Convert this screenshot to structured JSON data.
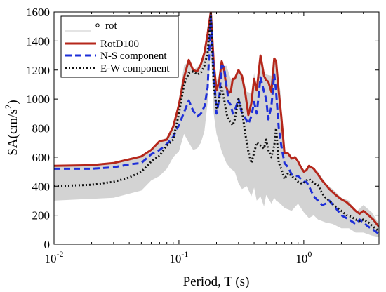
{
  "chart_data": {
    "type": "line",
    "xlabel": "Period, T (s)",
    "ylabel_main": "SA(cm/s",
    "ylabel_sup": "2",
    "ylabel_end": ")",
    "xscale": "log",
    "xlim": [
      0.01,
      4
    ],
    "ylim": [
      0,
      1600
    ],
    "x_ticks": [
      {
        "value": 0.01,
        "base": "10",
        "exp": "-2"
      },
      {
        "value": 0.1,
        "base": "10",
        "exp": "-1"
      },
      {
        "value": 1,
        "base": "10",
        "exp": "0"
      }
    ],
    "y_ticks": [
      0,
      200,
      400,
      600,
      800,
      1000,
      1200,
      1400,
      1600
    ],
    "grid": false,
    "legend_position": "top-left",
    "band": {
      "name": "rot",
      "color": "#d3d3d3",
      "x": [
        0.01,
        0.03,
        0.05,
        0.06,
        0.07,
        0.08,
        0.09,
        0.1,
        0.11,
        0.12,
        0.13,
        0.14,
        0.15,
        0.16,
        0.17,
        0.18,
        0.19,
        0.2,
        0.22,
        0.24,
        0.26,
        0.28,
        0.3,
        0.32,
        0.35,
        0.38,
        0.4,
        0.42,
        0.45,
        0.48,
        0.5,
        0.55,
        0.58,
        0.6,
        0.65,
        0.7,
        0.75,
        0.8,
        0.9,
        1.0,
        1.1,
        1.2,
        1.3,
        1.5,
        1.7,
        2.0,
        2.3,
        2.6,
        3.0,
        3.5,
        4.0
      ],
      "lower": [
        300,
        320,
        370,
        440,
        470,
        520,
        600,
        640,
        760,
        700,
        650,
        660,
        700,
        780,
        980,
        1350,
        900,
        760,
        640,
        560,
        520,
        500,
        420,
        380,
        400,
        330,
        390,
        300,
        330,
        260,
        340,
        280,
        320,
        300,
        280,
        250,
        240,
        230,
        280,
        220,
        180,
        200,
        170,
        150,
        140,
        110,
        110,
        80,
        80,
        60,
        50
      ],
      "upper": [
        540,
        560,
        600,
        640,
        700,
        740,
        800,
        1000,
        1230,
        1260,
        1200,
        1220,
        1250,
        1350,
        1500,
        1620,
        1250,
        1120,
        1220,
        1230,
        1140,
        1150,
        1200,
        1180,
        1050,
        1040,
        1180,
        1060,
        1290,
        1170,
        1170,
        1160,
        1280,
        1250,
        1050,
        620,
        630,
        600,
        560,
        510,
        540,
        520,
        500,
        420,
        380,
        320,
        300,
        220,
        270,
        220,
        140
      ]
    },
    "series": [
      {
        "name": "RotD100",
        "color": "#b5271b",
        "dash": "solid",
        "width": 3,
        "x": [
          0.01,
          0.02,
          0.03,
          0.04,
          0.05,
          0.06,
          0.07,
          0.08,
          0.09,
          0.1,
          0.11,
          0.12,
          0.13,
          0.14,
          0.15,
          0.16,
          0.17,
          0.18,
          0.19,
          0.2,
          0.21,
          0.22,
          0.23,
          0.24,
          0.25,
          0.26,
          0.27,
          0.28,
          0.3,
          0.32,
          0.34,
          0.36,
          0.38,
          0.4,
          0.42,
          0.45,
          0.48,
          0.5,
          0.52,
          0.55,
          0.58,
          0.6,
          0.63,
          0.66,
          0.7,
          0.75,
          0.8,
          0.85,
          0.9,
          0.95,
          1.0,
          1.05,
          1.1,
          1.2,
          1.3,
          1.4,
          1.5,
          1.6,
          1.8,
          2.0,
          2.2,
          2.4,
          2.6,
          2.8,
          3.0,
          3.3,
          3.6,
          4.0
        ],
        "y": [
          540,
          545,
          560,
          585,
          605,
          650,
          710,
          720,
          810,
          960,
          1150,
          1270,
          1200,
          1190,
          1240,
          1320,
          1450,
          1600,
          1250,
          1060,
          1120,
          1260,
          1200,
          1080,
          1040,
          1050,
          1140,
          1140,
          1200,
          1160,
          1040,
          890,
          970,
          1140,
          1060,
          1300,
          1160,
          1130,
          1120,
          1050,
          1280,
          1260,
          1050,
          880,
          630,
          625,
          590,
          600,
          570,
          530,
          500,
          510,
          540,
          520,
          480,
          440,
          410,
          380,
          340,
          310,
          290,
          260,
          230,
          210,
          230,
          200,
          170,
          120
        ]
      },
      {
        "name": "N-S component",
        "color": "#1f30d8",
        "dash": "dashed",
        "width": 3,
        "x": [
          0.01,
          0.02,
          0.03,
          0.04,
          0.05,
          0.06,
          0.07,
          0.08,
          0.09,
          0.1,
          0.11,
          0.12,
          0.13,
          0.14,
          0.15,
          0.16,
          0.17,
          0.18,
          0.19,
          0.2,
          0.21,
          0.22,
          0.23,
          0.24,
          0.25,
          0.26,
          0.27,
          0.28,
          0.3,
          0.32,
          0.34,
          0.36,
          0.38,
          0.4,
          0.42,
          0.45,
          0.48,
          0.5,
          0.52,
          0.55,
          0.58,
          0.6,
          0.63,
          0.66,
          0.7,
          0.75,
          0.8,
          0.85,
          0.9,
          0.95,
          1.0,
          1.05,
          1.1,
          1.2,
          1.3,
          1.4,
          1.5,
          1.6,
          1.8,
          2.0,
          2.2,
          2.4,
          2.6,
          2.8,
          3.0,
          3.3,
          3.6,
          4.0
        ],
        "y": [
          520,
          520,
          530,
          550,
          560,
          620,
          650,
          690,
          740,
          820,
          910,
          990,
          920,
          880,
          900,
          950,
          1080,
          1570,
          1200,
          900,
          1000,
          1230,
          1220,
          1100,
          980,
          960,
          900,
          920,
          1000,
          900,
          870,
          830,
          880,
          980,
          900,
          1150,
          1050,
          1000,
          860,
          950,
          1170,
          1050,
          800,
          680,
          560,
          530,
          480,
          470,
          470,
          450,
          430,
          430,
          400,
          330,
          300,
          270,
          280,
          300,
          250,
          200,
          180,
          160,
          140,
          170,
          150,
          120,
          100,
          70
        ]
      },
      {
        "name": "E-W component",
        "color": "#111111",
        "dash": "dotted",
        "width": 3,
        "x": [
          0.01,
          0.02,
          0.03,
          0.04,
          0.05,
          0.06,
          0.07,
          0.08,
          0.09,
          0.1,
          0.11,
          0.12,
          0.13,
          0.14,
          0.15,
          0.16,
          0.17,
          0.18,
          0.19,
          0.2,
          0.21,
          0.22,
          0.23,
          0.24,
          0.25,
          0.26,
          0.27,
          0.28,
          0.3,
          0.32,
          0.34,
          0.36,
          0.38,
          0.4,
          0.42,
          0.45,
          0.48,
          0.5,
          0.52,
          0.55,
          0.58,
          0.6,
          0.63,
          0.66,
          0.7,
          0.75,
          0.8,
          0.85,
          0.9,
          0.95,
          1.0,
          1.05,
          1.1,
          1.2,
          1.3,
          1.4,
          1.5,
          1.6,
          1.8,
          2.0,
          2.2,
          2.4,
          2.6,
          2.8,
          3.0,
          3.3,
          3.6,
          4.0
        ],
        "y": [
          400,
          410,
          430,
          460,
          500,
          570,
          610,
          680,
          720,
          900,
          1100,
          1180,
          1190,
          1170,
          1180,
          1230,
          1320,
          1590,
          1100,
          940,
          1000,
          1080,
          1000,
          900,
          860,
          840,
          820,
          860,
          1000,
          920,
          760,
          640,
          560,
          630,
          700,
          680,
          660,
          720,
          650,
          600,
          680,
          800,
          560,
          520,
          450,
          490,
          470,
          450,
          430,
          420,
          420,
          440,
          450,
          420,
          410,
          350,
          320,
          300,
          260,
          230,
          200,
          190,
          170,
          160,
          170,
          150,
          120,
          90
        ]
      }
    ]
  }
}
